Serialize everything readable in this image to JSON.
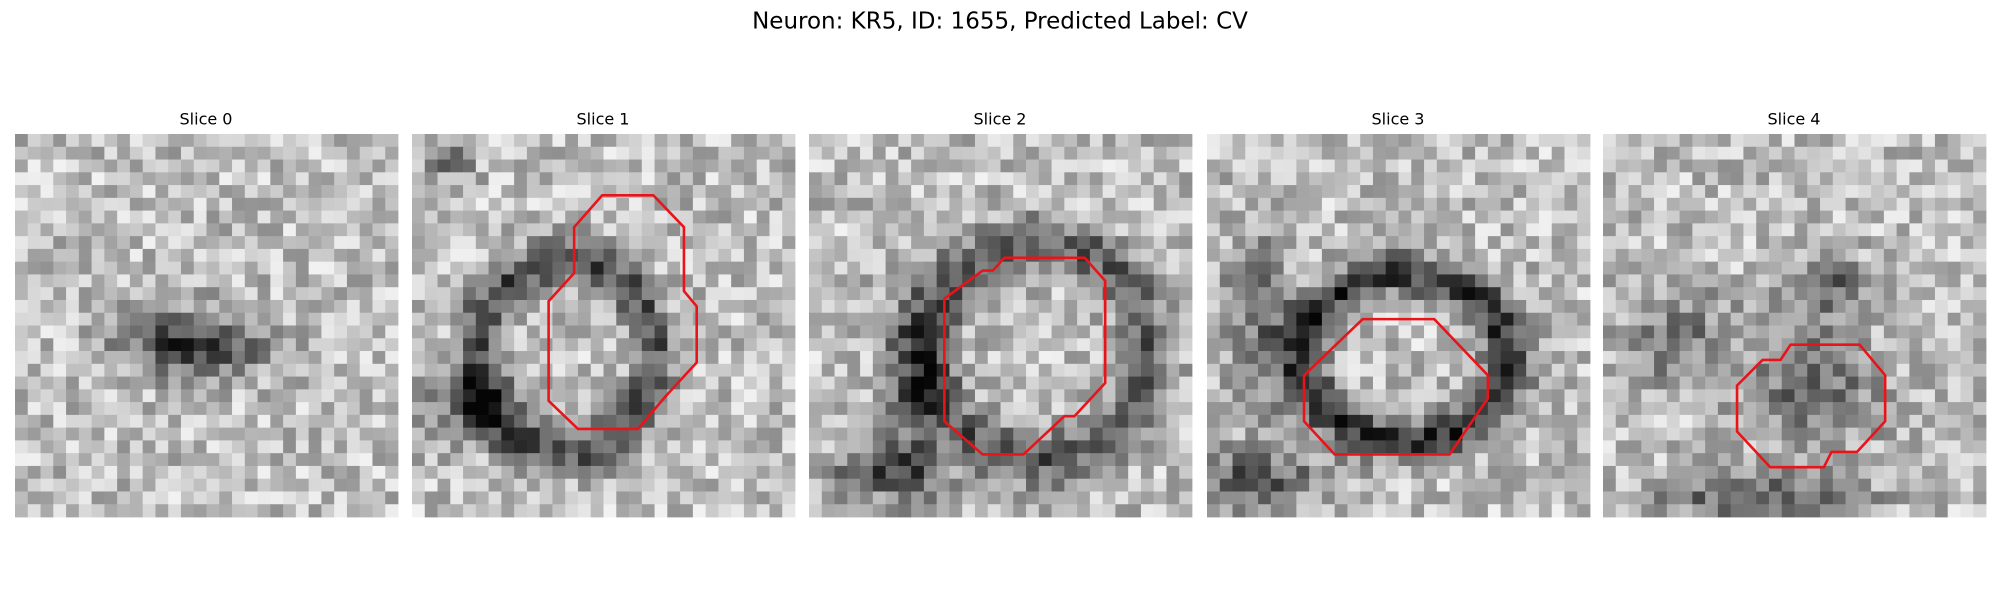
{
  "title": "Neuron: KR5, ID: 1655, Predicted Label: CV",
  "panels": [
    {
      "title": "Slice 0"
    },
    {
      "title": "Slice 1"
    },
    {
      "title": "Slice 2"
    },
    {
      "title": "Slice 3"
    },
    {
      "title": "Slice 4"
    }
  ]
}
